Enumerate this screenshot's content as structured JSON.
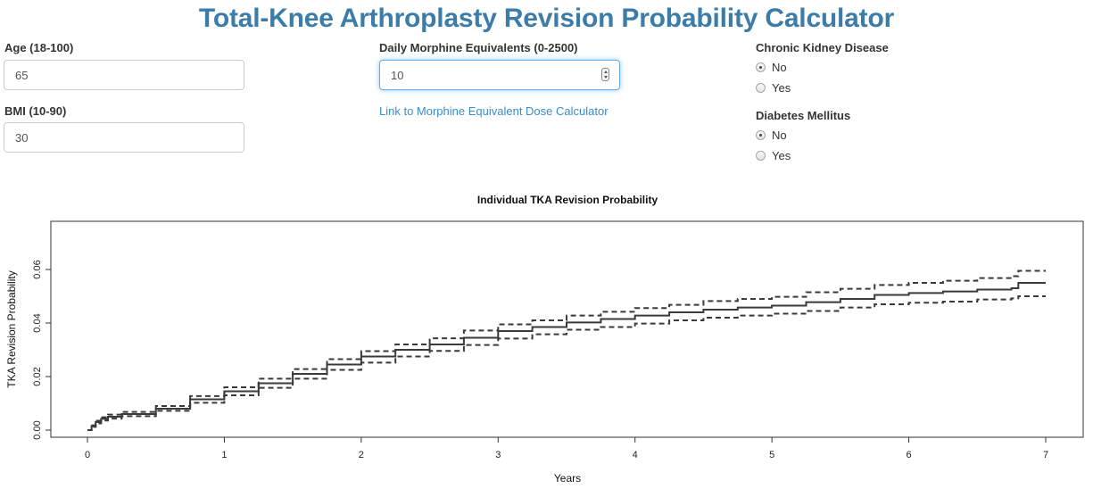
{
  "header": {
    "title": "Total-Knee Arthroplasty Revision Probability Calculator"
  },
  "inputs": {
    "age": {
      "label": "Age (18-100)",
      "value": "65"
    },
    "bmi": {
      "label": "BMI (10-90)",
      "value": "30"
    },
    "morphine": {
      "label": "Daily Morphine Equivalents (0-2500)",
      "value": "10"
    },
    "morphine_link": "Link to Morphine Equivalent Dose Calculator"
  },
  "radios": {
    "ckd": {
      "label": "Chronic Kidney Disease",
      "options": [
        "No",
        "Yes"
      ],
      "selected": "No"
    },
    "diabetes": {
      "label": "Diabetes Mellitus",
      "options": [
        "No",
        "Yes"
      ],
      "selected": "No"
    }
  },
  "colors": {
    "title": "#3b7ca8",
    "link": "#3a8ccb",
    "focus": "#66afe9"
  },
  "chart_data": {
    "type": "line",
    "title": "Individual TKA Revision Probability",
    "xlabel": "Years",
    "ylabel": "TKA Revision Probability",
    "xlim": [
      0,
      7
    ],
    "ylim": [
      0,
      0.07
    ],
    "x_ticks": [
      "0",
      "1",
      "2",
      "3",
      "4",
      "5",
      "6",
      "7"
    ],
    "y_ticks": [
      "0.00",
      "0.02",
      "0.04",
      "0.06"
    ],
    "grid": false,
    "x": [
      0,
      0.03,
      0.06,
      0.1,
      0.15,
      0.25,
      0.5,
      0.75,
      1.0,
      1.25,
      1.5,
      1.75,
      2.0,
      2.25,
      2.5,
      2.75,
      3.0,
      3.25,
      3.5,
      3.75,
      4.0,
      4.25,
      4.5,
      4.75,
      5.0,
      5.25,
      5.5,
      5.75,
      6.0,
      6.25,
      6.5,
      6.75,
      6.8,
      7.0
    ],
    "series": [
      {
        "style": "solid",
        "values": [
          0,
          0.0015,
          0.003,
          0.0042,
          0.005,
          0.006,
          0.008,
          0.0115,
          0.0145,
          0.0175,
          0.021,
          0.0245,
          0.0275,
          0.03,
          0.032,
          0.0345,
          0.037,
          0.0385,
          0.0402,
          0.0415,
          0.0428,
          0.044,
          0.045,
          0.0458,
          0.0465,
          0.0478,
          0.049,
          0.0505,
          0.0512,
          0.0518,
          0.0525,
          0.053,
          0.055,
          0.055
        ]
      },
      {
        "style": "dashed",
        "values": [
          0,
          0.0018,
          0.0035,
          0.0048,
          0.0058,
          0.0068,
          0.009,
          0.0127,
          0.016,
          0.0192,
          0.0228,
          0.0265,
          0.0295,
          0.032,
          0.0343,
          0.0372,
          0.0395,
          0.041,
          0.0428,
          0.0442,
          0.0456,
          0.0468,
          0.0482,
          0.049,
          0.0498,
          0.0515,
          0.0528,
          0.0542,
          0.055,
          0.0558,
          0.0568,
          0.0575,
          0.0595,
          0.0595
        ]
      },
      {
        "style": "dashed",
        "values": [
          0,
          0.0012,
          0.0025,
          0.0036,
          0.0043,
          0.0052,
          0.0072,
          0.0102,
          0.013,
          0.0158,
          0.0192,
          0.0225,
          0.0252,
          0.0275,
          0.0296,
          0.0318,
          0.0342,
          0.0358,
          0.0375,
          0.0385,
          0.0398,
          0.041,
          0.042,
          0.0428,
          0.0435,
          0.0445,
          0.0458,
          0.047,
          0.0476,
          0.048,
          0.0488,
          0.0492,
          0.05,
          0.05
        ]
      }
    ]
  }
}
